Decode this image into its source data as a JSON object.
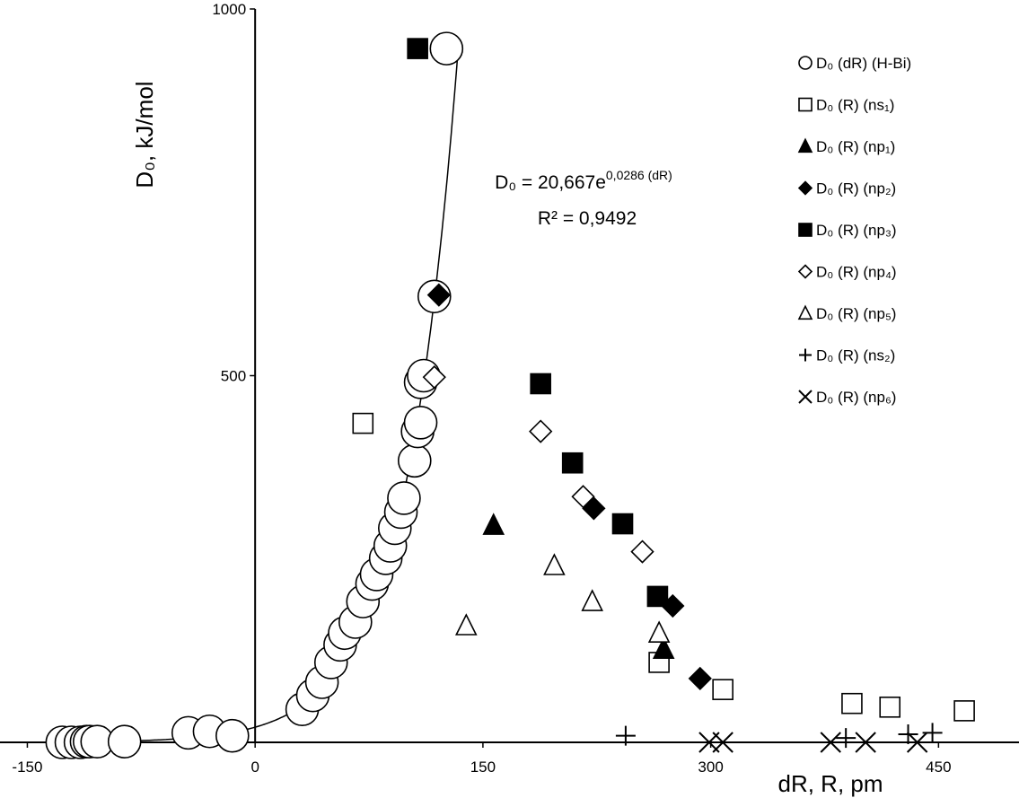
{
  "chart_data": {
    "type": "scatter",
    "x_label": "dR, R, pm",
    "y_label": "D₀, kJ/mol",
    "xlim": [
      -168,
      503
    ],
    "ylim": [
      0,
      1000
    ],
    "xticks": [
      -150,
      0,
      150,
      300,
      450
    ],
    "yticks": [
      0,
      500,
      1000
    ],
    "equation_base": "D₀ = 20,667e",
    "equation_exponent": "0,0286 (dR)",
    "r_squared": "R² = 0,9492",
    "trendline": {
      "a": 20.667,
      "b": 0.0286,
      "x_range": [
        -110,
        134
      ]
    },
    "legend": "right",
    "series": [
      {
        "name": "D₀ (dR) (H-Bi)",
        "marker": "circle-open",
        "x": [
          -127,
          -121,
          -115,
          -111,
          -109,
          -104,
          -86,
          -44,
          -30,
          -15,
          31,
          38,
          44,
          50,
          56,
          59,
          66,
          71,
          77,
          80,
          86,
          89,
          92,
          96,
          98,
          105,
          107,
          109,
          109,
          111,
          118,
          126
        ],
        "y": [
          0,
          0,
          0,
          1,
          1,
          1,
          1,
          13,
          15,
          9,
          45,
          64,
          82,
          109,
          133,
          149,
          164,
          192,
          216,
          229,
          251,
          268,
          292,
          314,
          333,
          384,
          424,
          436,
          491,
          500,
          608,
          946
        ]
      },
      {
        "name": "D₀ (R) (ns₁)",
        "marker": "square-open",
        "x": [
          71,
          266,
          308,
          393,
          418,
          467
        ],
        "y": [
          435,
          109,
          72,
          53,
          48,
          43
        ]
      },
      {
        "name": "D₀ (R) (np₁)",
        "marker": "triangle-filled",
        "x": [
          157,
          269
        ],
        "y": [
          296,
          127
        ]
      },
      {
        "name": "D₀ (R) (np₂)",
        "marker": "diamond-filled",
        "x": [
          121,
          223,
          275,
          293
        ],
        "y": [
          610,
          319,
          186,
          87
        ]
      },
      {
        "name": "D₀ (R) (np₃)",
        "marker": "square-filled",
        "x": [
          107,
          188,
          209,
          242,
          265
        ],
        "y": [
          946,
          489,
          381,
          298,
          199
        ]
      },
      {
        "name": "D₀ (R) (np₄)",
        "marker": "diamond-open",
        "x": [
          118,
          188,
          216,
          255
        ],
        "y": [
          498,
          424,
          335,
          260
        ]
      },
      {
        "name": "D₀ (R) (np₅)",
        "marker": "triangle-open",
        "x": [
          139,
          197,
          222,
          266
        ],
        "y": [
          159,
          241,
          192,
          149
        ]
      },
      {
        "name": "D₀ (R) (ns₂)",
        "marker": "plus",
        "x": [
          244,
          389,
          430,
          446
        ],
        "y": [
          9,
          6,
          11,
          13
        ]
      },
      {
        "name": "D₀ (R) (np₆)",
        "marker": "x",
        "x": [
          299,
          308,
          379,
          402,
          436
        ],
        "y": [
          0,
          0,
          0,
          0,
          0
        ]
      }
    ]
  }
}
